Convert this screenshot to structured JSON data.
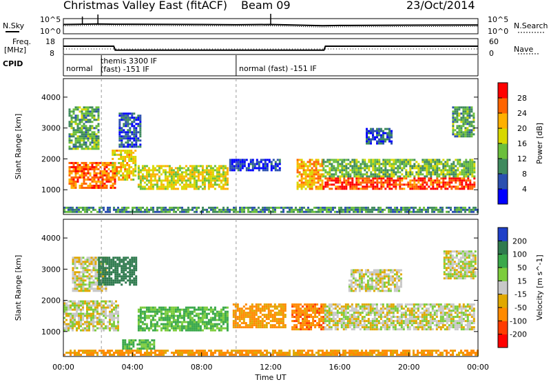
{
  "header": {
    "title": "Christmas Valley East (fitACF)",
    "beam": "Beam 09",
    "date": "23/Oct/2014"
  },
  "left_labels": {
    "nsky": "N.Sky",
    "freq": "Freq.",
    "mhz": "[MHz]",
    "cpid": "CPID"
  },
  "right_labels": {
    "nsearch": "N.Search",
    "nave": "Nave"
  },
  "noise_axis": {
    "left_top": "10^5",
    "left_bottom": "10^0",
    "right_top": "10^5",
    "right_bottom": "10^0"
  },
  "freq_axis": {
    "left_top": "18",
    "left_bottom": "8",
    "right_top": "60",
    "right_bottom": "0"
  },
  "cpid_segments": [
    {
      "label": "normal",
      "start": "00:00"
    },
    {
      "label": "themis 3300 IF",
      "label2": "(fast) -151 IF",
      "start": "02:12"
    },
    {
      "label": "normal (fast) -151 IF",
      "start": "10:00"
    }
  ],
  "colors": {
    "power_scale": [
      "#0000ff",
      "#2a4fb0",
      "#3f8a5e",
      "#6bbf3c",
      "#d8d800",
      "#ffb000",
      "#ff6400",
      "#ff0000"
    ],
    "velocity_scale": [
      "#1f3fc8",
      "#2f7a4e",
      "#3aa84a",
      "#7ccc3c",
      "#c8c8c8",
      "#e0a800",
      "#ff8a00",
      "#ff3c00",
      "#ff0000"
    ]
  },
  "chart_data": [
    {
      "type": "line",
      "name": "noise",
      "x": [
        "00:00",
        "02:00",
        "03:00",
        "04:00",
        "08:00",
        "10:00",
        "12:00",
        "15:00",
        "16:00",
        "20:00",
        "24:00"
      ],
      "series": [
        {
          "values": [
            3.2,
            3.4,
            3.3,
            3.3,
            3.2,
            3.1,
            3.2,
            2.7,
            2.8,
            2.9,
            3.0
          ]
        }
      ],
      "ylabel": "N.Sky",
      "yticks": [
        "10^0",
        "10^5"
      ]
    },
    {
      "type": "line",
      "name": "frequency",
      "x": [
        "00:00",
        "02:55",
        "03:00",
        "15:05",
        "15:10",
        "24:00"
      ],
      "series": [
        {
          "values": [
            13,
            13,
            10.4,
            10.4,
            13,
            13
          ]
        }
      ],
      "ylabel": "Freq. [MHz]",
      "ylim": [
        8,
        18
      ],
      "yticks": [
        "8",
        "18"
      ],
      "y2ticks": [
        "0",
        "60"
      ]
    },
    {
      "type": "heatmap",
      "name": "power",
      "xlabel": "Time UT",
      "ylabel": "Slant Range [km]",
      "xticks": [
        "00:00",
        "04:00",
        "08:00",
        "12:00",
        "16:00",
        "20:00",
        "00:00"
      ],
      "yticks": [
        "1000",
        "2000",
        "3000",
        "4000"
      ],
      "ylim": [
        200,
        4600
      ],
      "colorbar_label": "Power [dB]",
      "colorbar_ticks": [
        "4",
        "8",
        "12",
        "16",
        "20",
        "24",
        "28"
      ],
      "regions": [
        {
          "t0": 0.3,
          "t1": 3.0,
          "r0": 1050,
          "r1": 1900,
          "level": 26
        },
        {
          "t0": 0.3,
          "t1": 2.0,
          "r0": 2300,
          "r1": 3700,
          "level": 12
        },
        {
          "t0": 2.8,
          "t1": 4.2,
          "r0": 1300,
          "r1": 2300,
          "level": 20
        },
        {
          "t0": 3.2,
          "t1": 4.4,
          "r0": 2400,
          "r1": 3500,
          "level": 6
        },
        {
          "t0": 4.3,
          "t1": 9.5,
          "r0": 1050,
          "r1": 1800,
          "level": 18
        },
        {
          "t0": 9.6,
          "t1": 12.5,
          "r0": 1650,
          "r1": 2000,
          "level": 4
        },
        {
          "t0": 13.5,
          "t1": 15.0,
          "r0": 1050,
          "r1": 2000,
          "level": 22
        },
        {
          "t0": 15.0,
          "t1": 23.8,
          "r0": 1000,
          "r1": 1400,
          "level": 28
        },
        {
          "t0": 15.0,
          "t1": 23.8,
          "r0": 1400,
          "r1": 2000,
          "level": 14
        },
        {
          "t0": 17.5,
          "t1": 19.0,
          "r0": 2500,
          "r1": 3000,
          "level": 6
        },
        {
          "t0": 22.5,
          "t1": 23.8,
          "r0": 2700,
          "r1": 3700,
          "level": 12
        },
        {
          "t0": 0.0,
          "t1": 24.0,
          "r0": 250,
          "r1": 450,
          "level": 10
        }
      ]
    },
    {
      "type": "heatmap",
      "name": "velocity",
      "xlabel": "Time UT",
      "ylabel": "Slant Range [km]",
      "xticks": [
        "00:00",
        "04:00",
        "08:00",
        "12:00",
        "16:00",
        "20:00",
        "00:00"
      ],
      "yticks": [
        "1000",
        "2000",
        "3000",
        "4000"
      ],
      "ylim": [
        200,
        4600
      ],
      "colorbar_label": "Velocity [m s^-1]",
      "colorbar_ticks": [
        "200",
        "100",
        "50",
        "15",
        "-15",
        "-50",
        "-100",
        "-200"
      ],
      "regions": [
        {
          "t0": 0.0,
          "t1": 3.2,
          "r0": 1050,
          "r1": 2000,
          "level": 0
        },
        {
          "t0": 0.5,
          "t1": 2.5,
          "r0": 2300,
          "r1": 3400,
          "level": 0
        },
        {
          "t0": 2.0,
          "t1": 4.2,
          "r0": 2500,
          "r1": 3400,
          "level": 150
        },
        {
          "t0": 4.3,
          "t1": 9.5,
          "r0": 1050,
          "r1": 1800,
          "level": 60
        },
        {
          "t0": 3.4,
          "t1": 5.2,
          "r0": 450,
          "r1": 750,
          "level": 60
        },
        {
          "t0": 9.8,
          "t1": 12.8,
          "r0": 1150,
          "r1": 1900,
          "level": -60
        },
        {
          "t0": 13.2,
          "t1": 15.1,
          "r0": 1050,
          "r1": 1900,
          "level": -80
        },
        {
          "t0": 15.1,
          "t1": 23.8,
          "r0": 1050,
          "r1": 1900,
          "level": 0
        },
        {
          "t0": 16.5,
          "t1": 19.5,
          "r0": 2300,
          "r1": 3000,
          "level": 0
        },
        {
          "t0": 22.0,
          "t1": 23.8,
          "r0": 2700,
          "r1": 3600,
          "level": 0
        },
        {
          "t0": 0.0,
          "t1": 24.0,
          "r0": 250,
          "r1": 420,
          "level": -60
        }
      ]
    }
  ]
}
